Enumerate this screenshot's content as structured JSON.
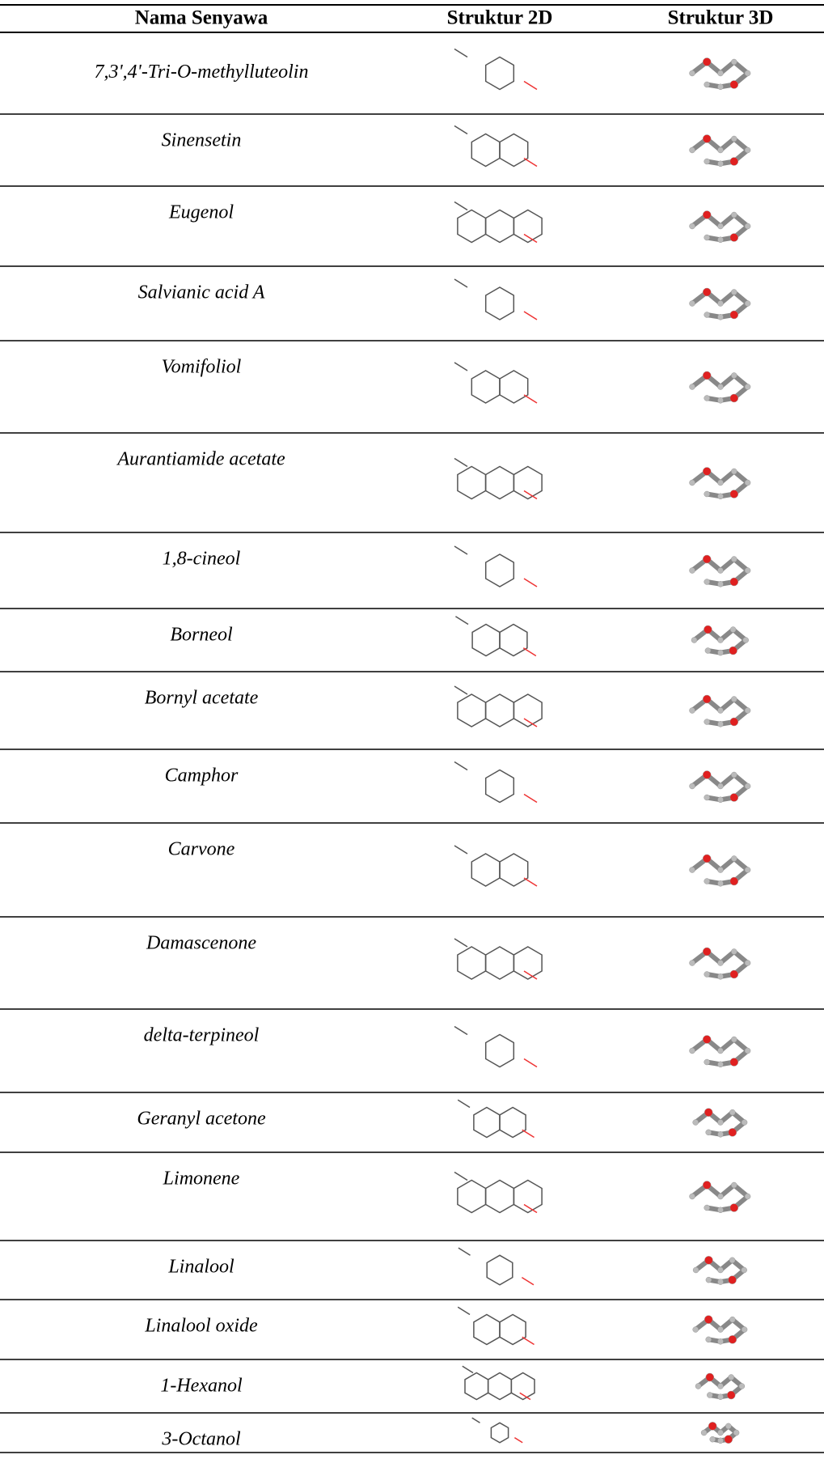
{
  "table": {
    "header": [
      "Nama Senyawa",
      "Struktur 2D",
      "Struktur 3D"
    ],
    "rows": [
      {
        "name": "7,3',4'-Tri-O-methylluteolin"
      },
      {
        "name": "Sinensetin"
      },
      {
        "name": "Eugenol"
      },
      {
        "name": "Salvianic acid A"
      },
      {
        "name": "Vomifoliol"
      },
      {
        "name": "Aurantiamide acetate"
      },
      {
        "name": "1,8-cineol"
      },
      {
        "name": "Borneol"
      },
      {
        "name": "Bornyl acetate"
      },
      {
        "name": "Camphor"
      },
      {
        "name": "Carvone"
      },
      {
        "name": "Damascenone"
      },
      {
        "name": "delta-terpineol"
      },
      {
        "name": "Geranyl acetone"
      },
      {
        "name": "Limonene"
      },
      {
        "name": "Linalool"
      },
      {
        "name": "Linalool oxide"
      },
      {
        "name": "1-Hexanol"
      },
      {
        "name": "3-Octanol"
      }
    ]
  }
}
